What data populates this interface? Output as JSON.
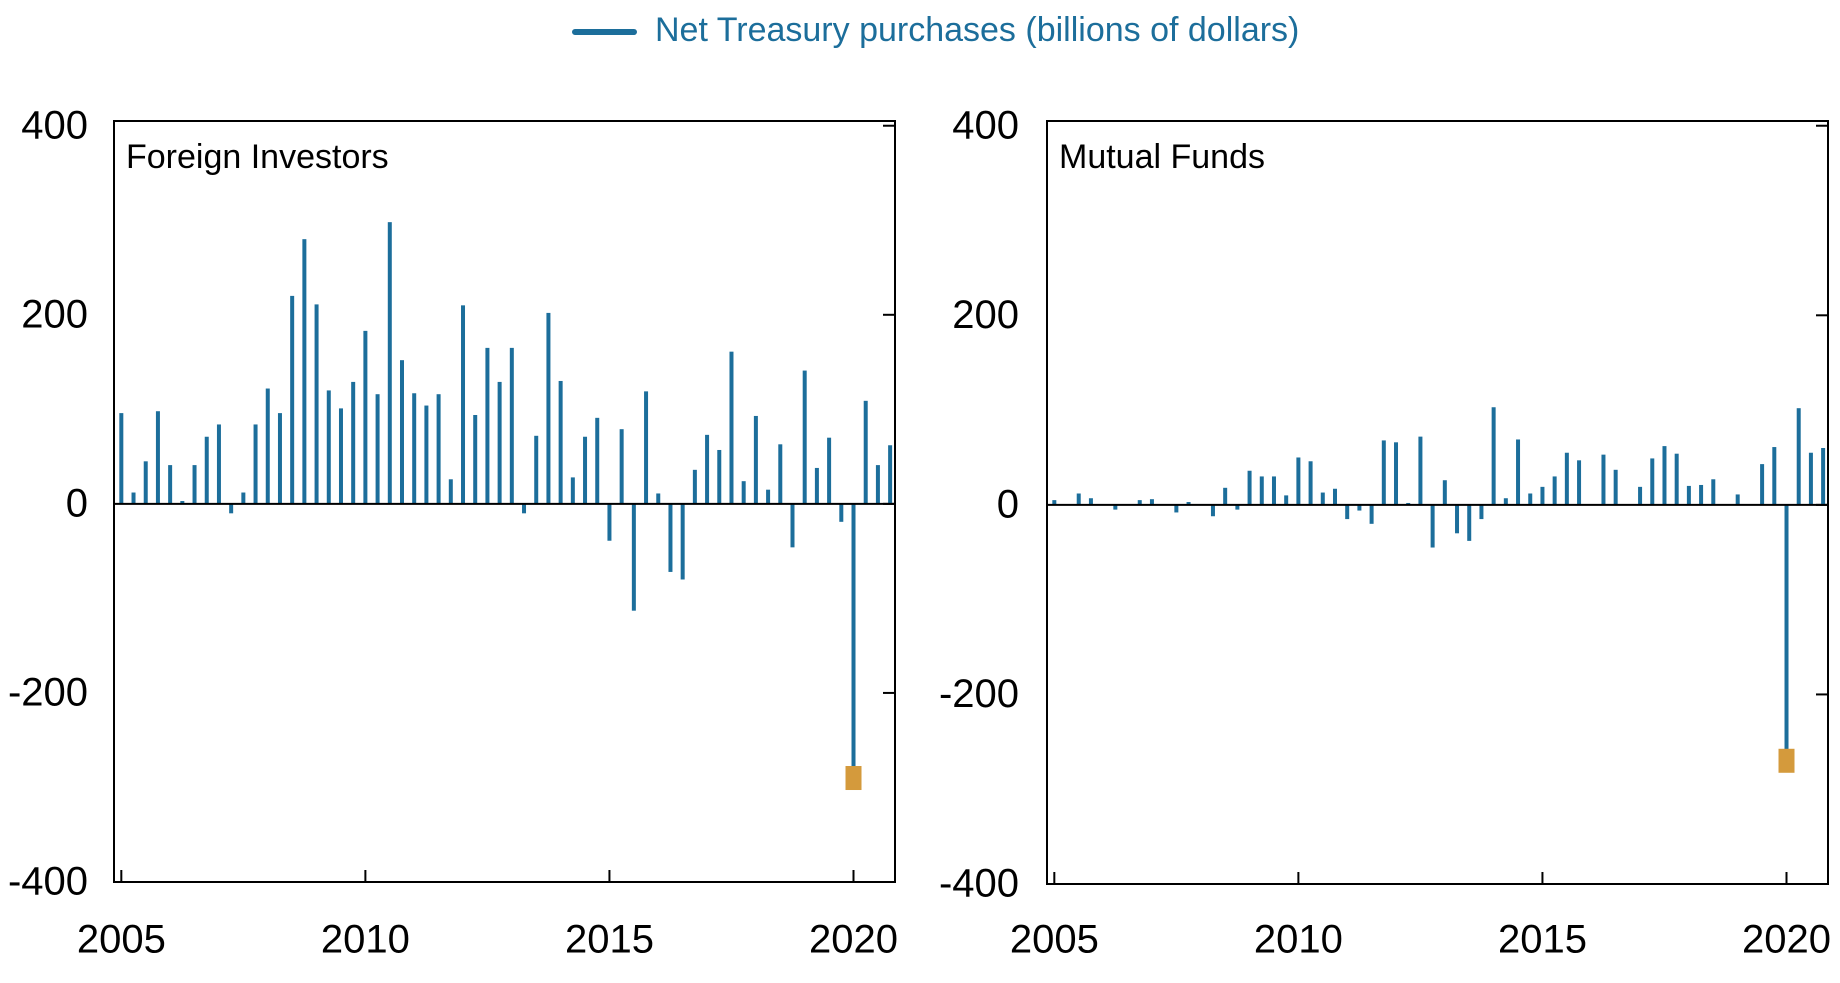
{
  "chart_data": [
    {
      "type": "bar",
      "title": "Foreign Investors",
      "x": [
        2005,
        2005.25,
        2005.5,
        2005.75,
        2006,
        2006.25,
        2006.5,
        2006.75,
        2007,
        2007.25,
        2007.5,
        2007.75,
        2008,
        2008.25,
        2008.5,
        2008.75,
        2009,
        2009.25,
        2009.5,
        2009.75,
        2010,
        2010.25,
        2010.5,
        2010.75,
        2011,
        2011.25,
        2011.5,
        2011.75,
        2012,
        2012.25,
        2012.5,
        2012.75,
        2013,
        2013.25,
        2013.5,
        2013.75,
        2014,
        2014.25,
        2014.5,
        2014.75,
        2015,
        2015.25,
        2015.5,
        2015.75,
        2016,
        2016.25,
        2016.5,
        2016.75,
        2017,
        2017.25,
        2017.5,
        2017.75,
        2018,
        2018.25,
        2018.5,
        2018.75,
        2019,
        2019.25,
        2019.5,
        2019.75,
        2020,
        2020.25,
        2020.5,
        2020.75
      ],
      "series": [
        {
          "name": "Net Treasury purchases (billions of dollars)",
          "color": "#1c6e9b",
          "values": [
            96,
            12,
            45,
            98,
            41,
            3,
            41,
            71,
            84,
            -10,
            12,
            84,
            122,
            96,
            220,
            280,
            211,
            120,
            101,
            129,
            183,
            116,
            298,
            152,
            117,
            104,
            116,
            26,
            210,
            94,
            165,
            129,
            165,
            -10,
            72,
            202,
            130,
            28,
            71,
            91,
            -39,
            79,
            -113,
            119,
            11,
            -72,
            -80,
            36,
            73,
            57,
            161,
            24,
            93,
            15,
            63,
            -46,
            141,
            38,
            70,
            -19,
            -290,
            109,
            41,
            62
          ]
        }
      ],
      "highlight": {
        "index": 60,
        "color": "#d49a3c"
      },
      "xlim": [
        2004.85,
        2020.85
      ],
      "xticks": [
        2005,
        2010,
        2015,
        2020
      ],
      "ylim": [
        -400,
        405
      ],
      "yticks": [
        -400,
        -200,
        0,
        200,
        400
      ]
    },
    {
      "type": "bar",
      "title": "Mutual Funds",
      "x": [
        2005,
        2005.25,
        2005.5,
        2005.75,
        2006,
        2006.25,
        2006.5,
        2006.75,
        2007,
        2007.25,
        2007.5,
        2007.75,
        2008,
        2008.25,
        2008.5,
        2008.75,
        2009,
        2009.25,
        2009.5,
        2009.75,
        2010,
        2010.25,
        2010.5,
        2010.75,
        2011,
        2011.25,
        2011.5,
        2011.75,
        2012,
        2012.25,
        2012.5,
        2012.75,
        2013,
        2013.25,
        2013.5,
        2013.75,
        2014,
        2014.25,
        2014.5,
        2014.75,
        2015,
        2015.25,
        2015.5,
        2015.75,
        2016,
        2016.25,
        2016.5,
        2016.75,
        2017,
        2017.25,
        2017.5,
        2017.75,
        2018,
        2018.25,
        2018.5,
        2018.75,
        2019,
        2019.25,
        2019.5,
        2019.75,
        2020,
        2020.25,
        2020.5,
        2020.75
      ],
      "series": [
        {
          "color": "#1c6e9b",
          "values": [
            5,
            0,
            12,
            7,
            0,
            -5,
            0,
            5,
            6,
            0,
            -8,
            3,
            0,
            -12,
            18,
            -5,
            36,
            30,
            30,
            10,
            50,
            46,
            13,
            17,
            -15,
            -6,
            -20,
            68,
            66,
            2,
            72,
            -45,
            26,
            -30,
            -38,
            -15,
            103,
            7,
            69,
            12,
            19,
            30,
            55,
            47,
            0,
            53,
            37,
            0,
            19,
            49,
            62,
            54,
            20,
            21,
            27,
            0,
            11,
            0,
            43,
            61,
            -270,
            102,
            55,
            60
          ]
        }
      ],
      "highlight": {
        "index": 60,
        "color": "#d49a3c"
      },
      "xlim": [
        2004.85,
        2020.85
      ],
      "xticks": [
        2005,
        2010,
        2015,
        2020
      ],
      "ylim": [
        -400,
        405
      ],
      "yticks": [
        -400,
        -200,
        0,
        200,
        400
      ]
    }
  ]
}
